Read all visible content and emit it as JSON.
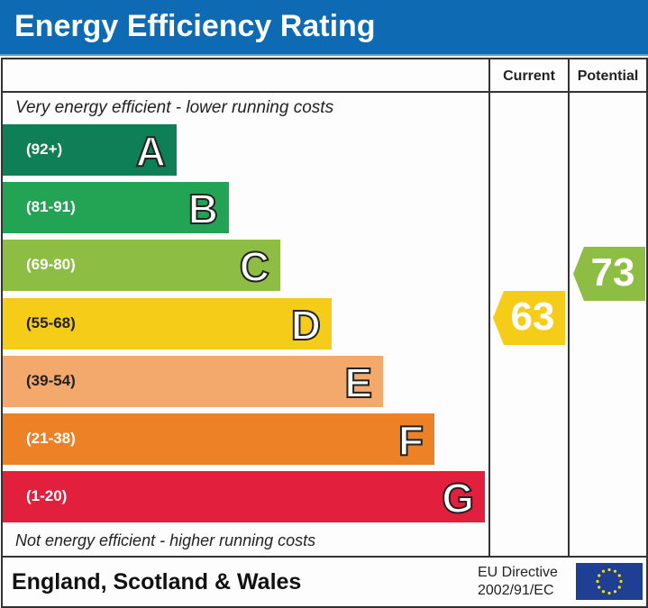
{
  "title": "Energy Efficiency Rating",
  "columns": {
    "current": "Current",
    "potential": "Potential"
  },
  "top_note": "Very energy efficient - lower running costs",
  "bottom_note": "Not energy efficient - higher running costs",
  "footer": {
    "region": "England, Scotland & Wales",
    "directive_line1": "EU Directive",
    "directive_line2": "2002/91/EC",
    "flag_icon": "eu-flag-icon"
  },
  "chart_data": {
    "type": "bar",
    "categories": [
      "A",
      "B",
      "C",
      "D",
      "E",
      "F",
      "G"
    ],
    "bands": [
      {
        "letter": "A",
        "range": "(92+)",
        "color": "#0f7f58"
      },
      {
        "letter": "B",
        "range": "(81-91)",
        "color": "#23a455"
      },
      {
        "letter": "C",
        "range": "(69-80)",
        "color": "#8dbd42"
      },
      {
        "letter": "D",
        "range": "(55-68)",
        "color": "#f5cc17"
      },
      {
        "letter": "E",
        "range": "(39-54)",
        "color": "#f2a96b"
      },
      {
        "letter": "F",
        "range": "(21-38)",
        "color": "#ec8125"
      },
      {
        "letter": "G",
        "range": "(1-20)",
        "color": "#e21f3d"
      }
    ],
    "current": {
      "value": 63,
      "label": "63",
      "band": "D",
      "color": "#f5cc17"
    },
    "potential": {
      "value": 73,
      "label": "73",
      "band": "C",
      "color": "#8dbd42"
    }
  }
}
